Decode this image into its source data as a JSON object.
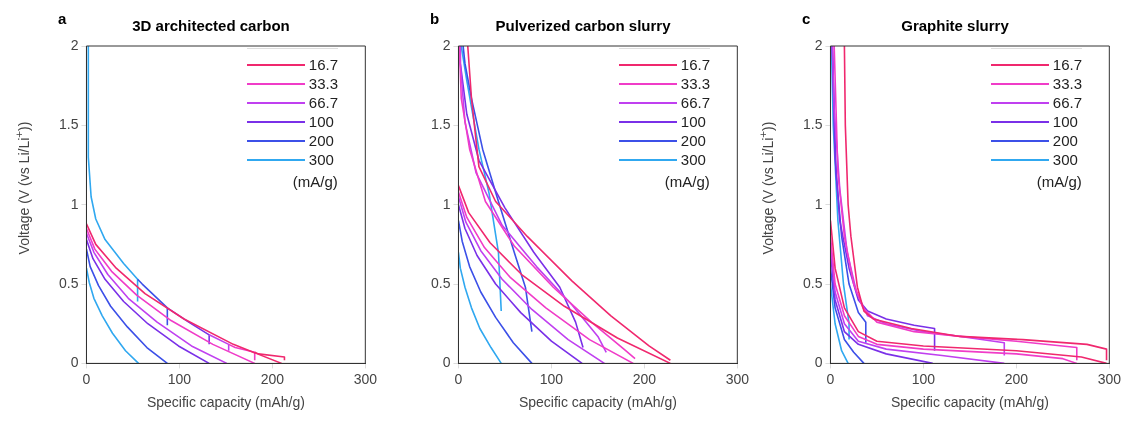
{
  "chart_data": [
    {
      "type": "line",
      "title": "3D architected carbon",
      "annotations": [
        "a"
      ],
      "xlabel": "Specific capacity (mAh/g)",
      "ylabel": "Voltage (V (vs Li/Li$^{+}$))",
      "xlim": [
        0,
        300
      ],
      "xticks": [
        0,
        100,
        200,
        300
      ],
      "ylim": [
        0,
        2
      ],
      "yticks": [
        0,
        0.5,
        1,
        1.5,
        2
      ],
      "legend": "top right",
      "legend_title": "(mA/g)",
      "series": [
        {
          "name": "16.7",
          "color": "#f0286e",
          "x": [
            0,
            10,
            32,
            63,
            105,
            158,
            210
          ],
          "values": [
            0.88,
            0.75,
            0.6,
            0.44,
            0.28,
            0.12,
            0
          ]
        },
        {
          "color": "#f0286e",
          "x": [
            213,
            213,
            185,
            181
          ],
          "values": [
            0.02,
            0.04,
            0.06,
            0.07
          ]
        },
        {
          "name": "33.3",
          "color": "#f03cc8",
          "x": [
            0,
            9,
            27,
            54,
            91,
            136,
            181
          ],
          "values": [
            0.85,
            0.72,
            0.58,
            0.43,
            0.27,
            0.12,
            0
          ]
        },
        {
          "color": "#f03cc8",
          "x": [
            181,
            181,
            160,
            153
          ],
          "values": [
            0.02,
            0.07,
            0.1,
            0.12
          ]
        },
        {
          "name": "66.7",
          "color": "#c040f0",
          "x": [
            0,
            8,
            23,
            45,
            76,
            113,
            151
          ],
          "values": [
            0.82,
            0.7,
            0.56,
            0.41,
            0.26,
            0.11,
            0
          ]
        },
        {
          "color": "#c040f0",
          "x": [
            153,
            153,
            132
          ],
          "values": [
            0.08,
            0.12,
            0.18
          ]
        },
        {
          "name": "100",
          "color": "#7a30e8",
          "x": [
            0,
            7,
            20,
            40,
            66,
            99,
            132
          ],
          "values": [
            0.78,
            0.66,
            0.53,
            0.39,
            0.25,
            0.11,
            0
          ]
        },
        {
          "color": "#7a30e8",
          "x": [
            132,
            132,
            110,
            87
          ],
          "values": [
            0.12,
            0.18,
            0.26,
            0.35
          ]
        },
        {
          "name": "200",
          "color": "#3c50e8",
          "x": [
            0,
            4,
            13,
            26,
            44,
            65,
            87
          ],
          "values": [
            0.72,
            0.61,
            0.49,
            0.36,
            0.23,
            0.1,
            0
          ]
        },
        {
          "color": "#3c50e8",
          "x": [
            87,
            87,
            60,
            55
          ],
          "values": [
            0.24,
            0.35,
            0.5,
            0.53
          ]
        },
        {
          "name": "300",
          "color": "#30a8f0",
          "x": [
            0,
            3,
            8,
            17,
            28,
            42,
            56
          ],
          "values": [
            0.6,
            0.51,
            0.41,
            0.3,
            0.19,
            0.08,
            0
          ]
        },
        {
          "color": "#30a8f0",
          "x": [
            55,
            55,
            40,
            20,
            10,
            5,
            2,
            2
          ],
          "values": [
            0.39,
            0.53,
            0.63,
            0.78,
            0.91,
            1.05,
            1.3,
            2
          ]
        }
      ]
    },
    {
      "type": "line",
      "title": "Pulverized carbon slurry",
      "annotations": [
        "b"
      ],
      "xlabel": "Specific capacity (mAh/g)",
      "xlim": [
        0,
        300
      ],
      "xticks": [
        0,
        100,
        200,
        300
      ],
      "ylim": [
        0,
        2
      ],
      "yticks": [
        0,
        0.5,
        1,
        1.5,
        2
      ],
      "legend": "top right",
      "legend_title": "(mA/g)",
      "series": [
        {
          "name": "16.7",
          "color": "#f0286e",
          "x": [
            0,
            11,
            34,
            68,
            114,
            171,
            228
          ],
          "values": [
            1.12,
            0.95,
            0.76,
            0.56,
            0.36,
            0.16,
            0
          ]
        },
        {
          "color": "#f0286e",
          "x": [
            228,
            205,
            164,
            122,
            74,
            40,
            22,
            14,
            10
          ],
          "values": [
            0.02,
            0.11,
            0.3,
            0.52,
            0.8,
            1.02,
            1.24,
            1.67,
            2
          ]
        },
        {
          "name": "33.3",
          "color": "#f03cc8",
          "x": [
            0,
            9,
            28,
            56,
            94,
            141,
            188
          ],
          "values": [
            1.08,
            0.92,
            0.73,
            0.54,
            0.35,
            0.15,
            0
          ]
        },
        {
          "color": "#f03cc8",
          "x": [
            190,
            178,
            143,
            102,
            60,
            29,
            12,
            3,
            1
          ],
          "values": [
            0.03,
            0.09,
            0.26,
            0.48,
            0.74,
            1.02,
            1.35,
            1.67,
            2
          ]
        },
        {
          "name": "66.7",
          "color": "#c040f0",
          "x": [
            0,
            8,
            24,
            47,
            79,
            118,
            157
          ],
          "values": [
            1.05,
            0.89,
            0.71,
            0.53,
            0.34,
            0.15,
            0
          ]
        },
        {
          "color": "#c040f0",
          "x": [
            159,
            150,
            122,
            84,
            47,
            19,
            7,
            2,
            2
          ],
          "values": [
            0.07,
            0.17,
            0.37,
            0.61,
            0.87,
            1.2,
            1.52,
            1.89,
            2
          ]
        },
        {
          "name": "100",
          "color": "#7a30e8",
          "x": [
            0,
            7,
            20,
            40,
            67,
            100,
            133
          ],
          "values": [
            1,
            0.85,
            0.68,
            0.5,
            0.32,
            0.14,
            0
          ]
        },
        {
          "color": "#7a30e8",
          "x": [
            134,
            126,
            109,
            81,
            50,
            22,
            9,
            2,
            2
          ],
          "values": [
            0.1,
            0.26,
            0.48,
            0.7,
            0.98,
            1.28,
            1.57,
            1.89,
            2
          ]
        },
        {
          "name": "200",
          "color": "#3c50e8",
          "x": [
            0,
            4,
            12,
            24,
            40,
            59,
            79
          ],
          "values": [
            0.9,
            0.77,
            0.61,
            0.45,
            0.29,
            0.13,
            0
          ]
        },
        {
          "color": "#3c50e8",
          "x": [
            79,
            72,
            60,
            43,
            26,
            14,
            7,
            5
          ],
          "values": [
            0.2,
            0.48,
            0.7,
            1.02,
            1.35,
            1.67,
            1.89,
            2
          ]
        },
        {
          "name": "300",
          "color": "#30a8f0",
          "x": [
            0,
            2,
            7,
            14,
            23,
            35,
            46
          ],
          "values": [
            0.7,
            0.6,
            0.48,
            0.35,
            0.22,
            0.1,
            0
          ]
        },
        {
          "color": "#30a8f0",
          "x": [
            46,
            43,
            33,
            22,
            9,
            3
          ],
          "values": [
            0.33,
            0.7,
            1.07,
            1.35,
            1.78,
            2
          ]
        }
      ]
    },
    {
      "type": "line",
      "title": "Graphite slurry",
      "annotations": [
        "c"
      ],
      "xlabel": "Specific capacity (mAh/g)",
      "ylabel": "Voltage (V (vs Li/Li$^{+}$))",
      "xlim": [
        0,
        300
      ],
      "xticks": [
        0,
        100,
        200,
        300
      ],
      "ylim": [
        0,
        2
      ],
      "yticks": [
        0,
        0.5,
        1,
        1.5,
        2
      ],
      "legend": "top right",
      "legend_title": "(mA/g)",
      "series": [
        {
          "name": "16.7",
          "color": "#f0286e",
          "x": [
            0,
            5,
            15,
            30,
            50,
            100,
            200,
            270,
            297
          ],
          "values": [
            0.9,
            0.6,
            0.35,
            0.2,
            0.14,
            0.11,
            0.08,
            0.04,
            0
          ]
        },
        {
          "color": "#f0286e",
          "x": [
            297,
            297,
            276,
            207,
            139,
            87,
            46,
            36,
            29,
            22,
            19,
            16,
            15
          ],
          "values": [
            0.02,
            0.09,
            0.12,
            0.15,
            0.17,
            0.22,
            0.28,
            0.33,
            0.48,
            0.8,
            1,
            1.5,
            2
          ]
        },
        {
          "name": "33.3",
          "color": "#f03cc8",
          "x": [
            0,
            5,
            15,
            30,
            50,
            100,
            200,
            250,
            265
          ],
          "values": [
            0.8,
            0.5,
            0.3,
            0.17,
            0.12,
            0.09,
            0.06,
            0.03,
            0
          ]
        },
        {
          "color": "#f03cc8",
          "x": [
            265,
            265,
            200,
            140,
            90,
            50,
            35,
            25,
            15,
            8,
            4
          ],
          "values": [
            0.02,
            0.1,
            0.14,
            0.17,
            0.2,
            0.26,
            0.35,
            0.5,
            0.8,
            1.2,
            2
          ]
        },
        {
          "name": "66.7",
          "color": "#c040f0",
          "x": [
            0,
            5,
            15,
            30,
            60,
            120,
            187
          ],
          "values": [
            0.75,
            0.45,
            0.25,
            0.14,
            0.09,
            0.05,
            0
          ]
        },
        {
          "color": "#c040f0",
          "x": [
            187,
            187,
            140,
            100,
            60,
            40,
            28,
            18,
            10,
            4,
            2
          ],
          "values": [
            0.05,
            0.13,
            0.17,
            0.2,
            0.25,
            0.3,
            0.45,
            0.7,
            1.1,
            1.6,
            2
          ]
        },
        {
          "name": "100",
          "color": "#7a30e8",
          "x": [
            0,
            5,
            15,
            30,
            60,
            110
          ],
          "values": [
            0.7,
            0.4,
            0.2,
            0.12,
            0.06,
            0
          ]
        },
        {
          "color": "#7a30e8",
          "x": [
            112,
            112,
            90,
            60,
            40,
            30,
            20,
            10,
            5,
            2
          ],
          "values": [
            0.08,
            0.22,
            0.24,
            0.28,
            0.33,
            0.4,
            0.6,
            0.9,
            1.3,
            2
          ]
        },
        {
          "name": "200",
          "color": "#3c50e8",
          "x": [
            0,
            5,
            15,
            25,
            36
          ],
          "values": [
            0.6,
            0.35,
            0.15,
            0.07,
            0
          ]
        },
        {
          "color": "#3c50e8",
          "x": [
            38,
            38,
            30,
            20,
            12,
            6,
            2
          ],
          "values": [
            0.13,
            0.26,
            0.32,
            0.5,
            0.8,
            1.2,
            2
          ]
        },
        {
          "name": "300",
          "color": "#30a8f0",
          "x": [
            0,
            5,
            12,
            19
          ],
          "values": [
            0.5,
            0.25,
            0.08,
            0
          ]
        },
        {
          "color": "#30a8f0",
          "x": [
            20,
            20,
            14,
            8,
            3,
            1
          ],
          "values": [
            0.15,
            0.25,
            0.5,
            0.9,
            1.5,
            2
          ]
        }
      ]
    }
  ]
}
